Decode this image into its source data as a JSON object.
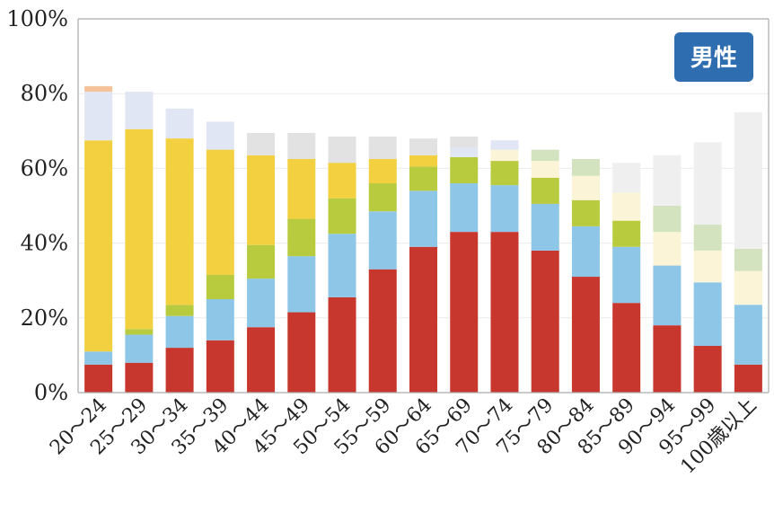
{
  "chart_data": {
    "type": "bar",
    "stacked": true,
    "badge": "男性",
    "categories": [
      "20～24",
      "25～29",
      "30～34",
      "35～39",
      "40～44",
      "45～49",
      "50～54",
      "55～59",
      "60～64",
      "65～69",
      "70～74",
      "75～79",
      "80～84",
      "85～89",
      "90～94",
      "95～99",
      "100歳以上"
    ],
    "ylim": [
      0,
      100
    ],
    "yticks": [
      "0%",
      "20%",
      "40%",
      "60%",
      "80%",
      "100%"
    ],
    "ytick_values": [
      0,
      20,
      40,
      60,
      80,
      100
    ],
    "grid": true,
    "series": [
      {
        "color": "#c8372d",
        "values": [
          7.5,
          8,
          12,
          14,
          17.5,
          21.5,
          25.5,
          33,
          39,
          43,
          43,
          38,
          31,
          24,
          18,
          12.5,
          7.5
        ]
      },
      {
        "color": "#8ec6e8",
        "values": [
          3.5,
          7.5,
          8.5,
          11,
          13,
          15,
          17,
          15.5,
          15,
          13,
          12.5,
          12.5,
          13.5,
          15,
          16,
          17,
          16
        ]
      },
      {
        "color": "#b8cb3f",
        "values": [
          0,
          1.5,
          3,
          6.5,
          9,
          10,
          9.5,
          7.5,
          6.5,
          7,
          6.5,
          7,
          7,
          7,
          0,
          0,
          0
        ]
      },
      {
        "color": "#f2d03f",
        "values": [
          56.5,
          53.5,
          44.5,
          33.5,
          24,
          16,
          9.5,
          6.5,
          3,
          0,
          0,
          0,
          0,
          0,
          0,
          0,
          0
        ]
      },
      {
        "color": "#fbf4d6",
        "values": [
          0,
          0,
          0,
          0,
          0,
          0,
          0,
          0,
          0,
          0,
          3,
          4.5,
          6.5,
          7.5,
          9,
          8.5,
          9
        ]
      },
      {
        "color": "#d4e3bf",
        "values": [
          0,
          0,
          0,
          0,
          0,
          0,
          0,
          0,
          0,
          0,
          0,
          3,
          4.5,
          0,
          7,
          7,
          6
        ]
      },
      {
        "color": "#e1e6f5",
        "values": [
          13,
          10,
          8,
          7.5,
          0,
          0,
          0,
          0,
          0,
          2.5,
          2.5,
          0,
          0,
          0,
          0,
          0,
          0
        ]
      },
      {
        "color": "#e2e2e2",
        "values": [
          0,
          0,
          0,
          0,
          6,
          7,
          7,
          6,
          4.5,
          3,
          0,
          0,
          0,
          0,
          0,
          0,
          0
        ]
      },
      {
        "color": "#efefef",
        "values": [
          0,
          0,
          0,
          0,
          0,
          0,
          0,
          0,
          0,
          0,
          0,
          0,
          0,
          8,
          13.5,
          22,
          36.5
        ]
      },
      {
        "color": "#f6c29a",
        "values": [
          1.5,
          0,
          0,
          0,
          0,
          0,
          0,
          0,
          0,
          0,
          0,
          0,
          0,
          0,
          0,
          0,
          0
        ]
      }
    ],
    "colors": {
      "axis": "#aaaaaa",
      "grid": "#ececec",
      "badge_bg": "#2e6db0",
      "text": "#222222"
    }
  }
}
